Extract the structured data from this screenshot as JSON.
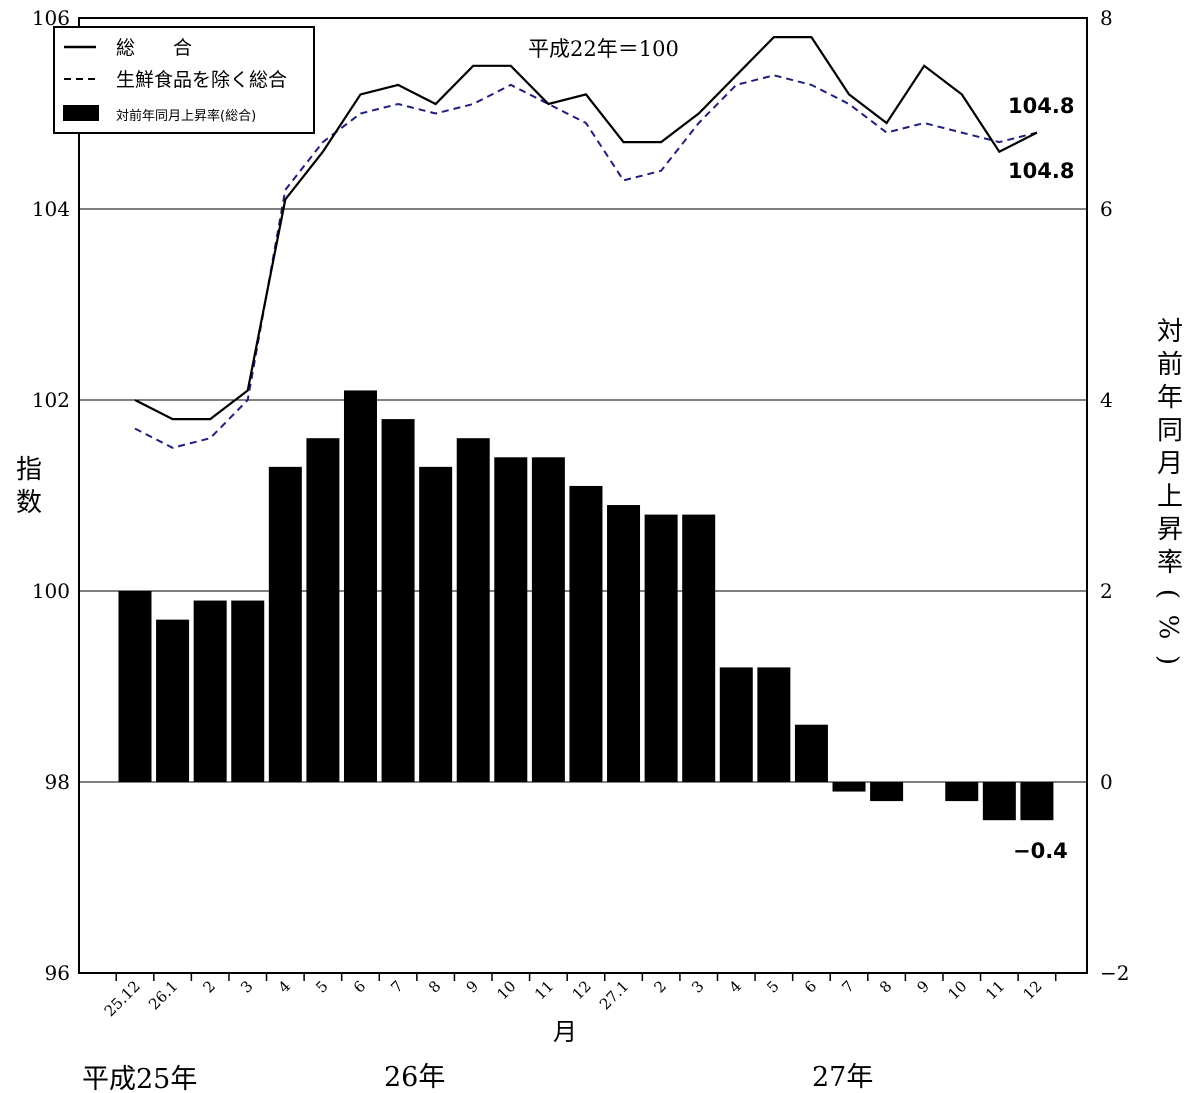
{
  "chart_data": {
    "type": "bar+line",
    "base_note": "平成22年＝100",
    "categories": [
      "25.12",
      "26.1",
      "2",
      "3",
      "4",
      "5",
      "6",
      "7",
      "8",
      "9",
      "10",
      "11",
      "12",
      "27.1",
      "2",
      "3",
      "4",
      "5",
      "6",
      "7",
      "8",
      "9",
      "10",
      "11",
      "12"
    ],
    "series": [
      {
        "name": "総　　合",
        "axis": "left",
        "kind": "line",
        "style": "solid",
        "color": "#000000",
        "values": [
          102.0,
          101.8,
          101.8,
          102.1,
          104.1,
          104.6,
          105.2,
          105.3,
          105.1,
          105.5,
          105.5,
          105.1,
          105.2,
          104.7,
          104.7,
          105.0,
          105.4,
          105.8,
          105.8,
          105.2,
          104.9,
          105.5,
          105.2,
          104.6,
          104.8
        ]
      },
      {
        "name": "生鮮食品を除く総合",
        "axis": "left",
        "kind": "line",
        "style": "dashed",
        "color": "#1f1f7a",
        "values": [
          101.7,
          101.5,
          101.6,
          102.0,
          104.2,
          104.7,
          105.0,
          105.1,
          105.0,
          105.1,
          105.3,
          105.1,
          104.9,
          104.3,
          104.4,
          104.9,
          105.3,
          105.4,
          105.3,
          105.1,
          104.8,
          104.9,
          104.8,
          104.7,
          104.8
        ]
      },
      {
        "name": "対前年同月上昇率(総合)",
        "axis": "right",
        "kind": "bar",
        "color": "#000000",
        "values": [
          2.0,
          1.7,
          1.9,
          1.9,
          3.3,
          3.6,
          4.1,
          3.8,
          3.3,
          3.6,
          3.4,
          3.4,
          3.1,
          2.9,
          2.8,
          2.8,
          1.2,
          1.2,
          0.6,
          -0.1,
          -0.2,
          0.0,
          -0.2,
          -0.4,
          -0.4
        ]
      }
    ],
    "y_left": {
      "label": "指数",
      "min": 96,
      "max": 106,
      "ticks": [
        "96",
        "98",
        "100",
        "102",
        "104",
        "106"
      ]
    },
    "y_right": {
      "label": "対前年同月上昇率(%)",
      "min": -2,
      "max": 8,
      "ticks": [
        "−2",
        "0",
        "2",
        "4",
        "6",
        "8"
      ]
    },
    "xlabel": "月",
    "year_labels": [
      "平成25年",
      "26年",
      "27年"
    ],
    "annotations": {
      "line1_last": "104.8",
      "line2_last": "104.8",
      "bar_last": "−0.4"
    },
    "grid": true,
    "legend": "top-left"
  }
}
